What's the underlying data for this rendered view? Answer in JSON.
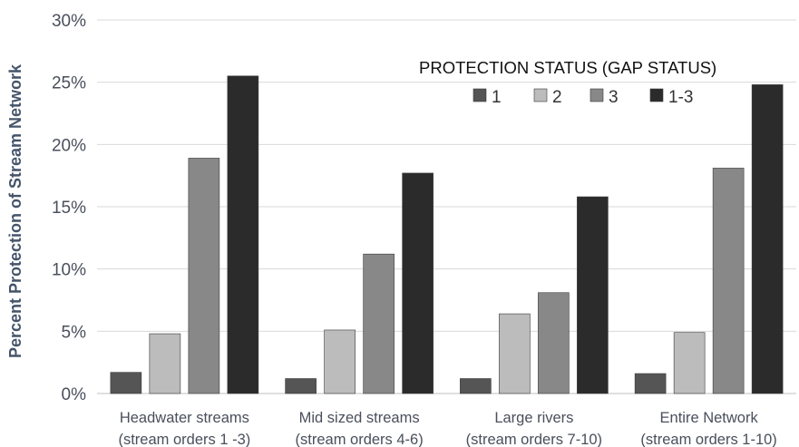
{
  "chart_data": {
    "type": "bar",
    "ylabel": "Percent Protection of Stream Network",
    "ylim": [
      0,
      30
    ],
    "yticks": [
      "0%",
      "5%",
      "10%",
      "15%",
      "20%",
      "25%",
      "30%"
    ],
    "grid": true,
    "legend_placement": "top-right",
    "legend_title": "PROTECTION STATUS (GAP STATUS)",
    "categories": [
      [
        "Headwater streams",
        "(stream orders 1 -3)"
      ],
      [
        "Mid sized streams",
        "(stream orders 4-6)"
      ],
      [
        "Large rivers",
        "(stream orders 7-10)"
      ],
      [
        "Entire Network",
        "(stream orders 1-10)"
      ]
    ],
    "series": [
      {
        "name": "1",
        "color": "#555555",
        "values": [
          1.7,
          1.2,
          1.2,
          1.6
        ]
      },
      {
        "name": "2",
        "color": "#bcbcbc",
        "values": [
          4.8,
          5.1,
          6.4,
          4.9
        ]
      },
      {
        "name": "3",
        "color": "#888888",
        "values": [
          18.9,
          11.2,
          8.1,
          18.1
        ]
      },
      {
        "name": "1-3",
        "color": "#2b2b2b",
        "values": [
          25.5,
          17.7,
          15.8,
          24.8
        ]
      }
    ]
  }
}
